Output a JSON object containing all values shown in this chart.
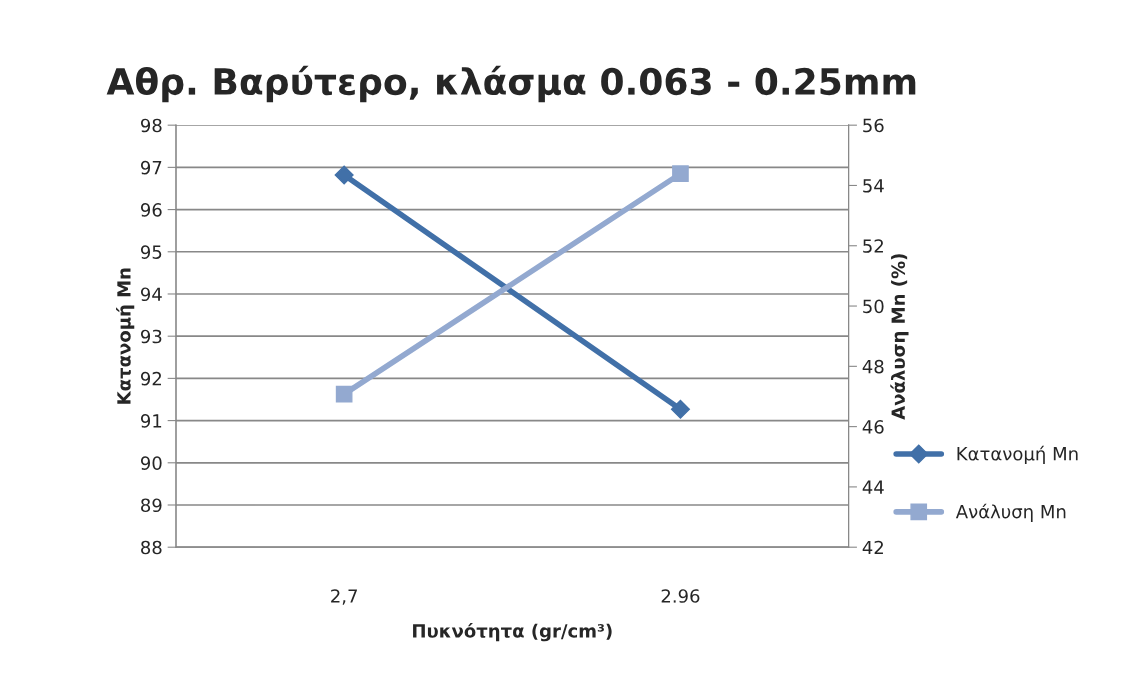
{
  "chart_data": {
    "type": "line",
    "title": "Αθρ. Βαρύτερο, κλάσμα 0.063 - 0.25mm",
    "xlabel": "Πυκνότητα (gr/cm³)",
    "ylabel": "Κατανομή Mn",
    "y2label": "Ανάλυση Mn (%)",
    "categories": [
      "2,7",
      "2.96"
    ],
    "series": [
      {
        "name": "Κατανομή Mn",
        "color": "#4170a8",
        "values": [
          96.82,
          91.27
        ],
        "marker": "diamond"
      },
      {
        "name": "Ανάλυση Mn",
        "color": "#93a9d0",
        "values": [
          47.08,
          54.39
        ],
        "marker": "square",
        "axis": "y2"
      }
    ],
    "ylim": [
      88,
      98
    ],
    "yticks": [
      88,
      89,
      90,
      91,
      92,
      93,
      94,
      95,
      96,
      97,
      98
    ],
    "y2lim": [
      42,
      56
    ],
    "y2ticks": [
      42,
      44,
      46,
      48,
      50,
      52,
      54,
      56
    ],
    "grid": "y",
    "legend": "right",
    "line_style": "solid"
  }
}
